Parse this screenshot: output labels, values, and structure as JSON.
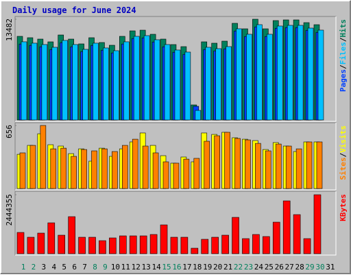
{
  "chart_data": {
    "title": "Daily usage for June 2024",
    "categories": [
      "1",
      "2",
      "3",
      "4",
      "5",
      "6",
      "7",
      "8",
      "9",
      "10",
      "11",
      "12",
      "13",
      "14",
      "15",
      "16",
      "17",
      "18",
      "19",
      "20",
      "21",
      "22",
      "23",
      "24",
      "25",
      "26",
      "27",
      "28",
      "29",
      "30",
      "31"
    ],
    "category_colors": [
      "#00805c",
      "#00805c",
      "#000000",
      "#000000",
      "#000000",
      "#000000",
      "#000000",
      "#00805c",
      "#00805c",
      "#000000",
      "#000000",
      "#000000",
      "#000000",
      "#000000",
      "#00805c",
      "#00805c",
      "#000000",
      "#000000",
      "#000000",
      "#000000",
      "#000000",
      "#00805c",
      "#00805c",
      "#000000",
      "#000000",
      "#000000",
      "#000000",
      "#000000",
      "#00805c",
      "#00805c",
      "#000000"
    ],
    "legend_separator": "/",
    "panels": [
      {
        "type": "bar",
        "ylim": [
          0,
          13482
        ],
        "yticks": [
          13482
        ],
        "series": [
          {
            "name": "Hits",
            "color": "#00805c",
            "values": [
              11190,
              11006,
              10822,
              10455,
              11372,
              10822,
              10180,
              11006,
              10364,
              9997,
              11190,
              11923,
              12014,
              11464,
              10822,
              10089,
              9813,
              2018,
              10455,
              10272,
              10547,
              12932,
              12198,
              13482,
              12198,
              13298,
              13390,
              13390,
              13023,
              12748,
              null
            ]
          },
          {
            "name": "Pages",
            "color": "#0040ff",
            "values": [
              10160,
              9976,
              9792,
              9425,
              10342,
              9792,
              9150,
              9976,
              9334,
              8967,
              10160,
              10893,
              10984,
              10434,
              9792,
              9059,
              8783,
              1834,
              9425,
              9242,
              9517,
              11902,
              11168,
              12452,
              11168,
              12268,
              12360,
              12360,
              11993,
              11718,
              null
            ]
          },
          {
            "name": "Files",
            "color": "#00c0ff",
            "values": [
              10460,
              10276,
              10092,
              9725,
              10642,
              10092,
              9450,
              10276,
              9634,
              9267,
              10460,
              11193,
              11284,
              10734,
              10092,
              9359,
              9083,
              1284,
              9725,
              9542,
              9817,
              12202,
              11468,
              12752,
              11468,
              12568,
              12660,
              12660,
              12293,
              12018,
              null
            ]
          }
        ]
      },
      {
        "type": "bar",
        "ylim": [
          0,
          656
        ],
        "yticks": [
          656
        ],
        "series": [
          {
            "name": "Visits",
            "color": "#ffff00",
            "values": [
              356,
              449,
              570,
              456,
              442,
              363,
              413,
              285,
              420,
              335,
              413,
              485,
              578,
              449,
              342,
              264,
              328,
              278,
              578,
              563,
              585,
              528,
              513,
              499,
              406,
              478,
              442,
              385,
              485,
              485,
              null
            ]
          },
          {
            "name": "Sites",
            "color": "#ff8000",
            "values": [
              371,
              449,
              656,
              413,
              420,
              335,
              406,
              392,
              413,
              385,
              449,
              513,
              442,
              371,
              278,
              264,
              306,
              314,
              492,
              549,
              585,
              521,
              506,
              470,
              392,
              463,
              442,
              413,
              485,
              485,
              null
            ]
          }
        ]
      },
      {
        "type": "bar",
        "ylim": [
          0,
          2444355
        ],
        "yticks": [
          2444355
        ],
        "series": [
          {
            "name": "KBytes",
            "color": "#ff0000",
            "values": [
              881000,
              682000,
              853000,
              1279000,
              767000,
              1535000,
              682000,
              682000,
              540000,
              654000,
              739000,
              739000,
              739000,
              796000,
              1194000,
              682000,
              682000,
              227000,
              597000,
              682000,
              767000,
              1506000,
              625000,
              796000,
              711000,
              1307000,
              2189000,
              1620000,
              625000,
              2444355,
              null
            ]
          }
        ]
      }
    ]
  }
}
